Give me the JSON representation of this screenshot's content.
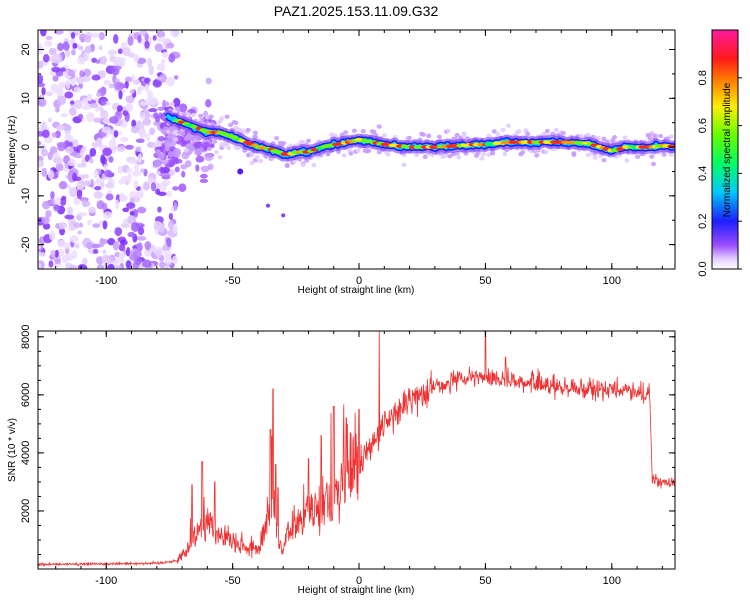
{
  "figure": {
    "title": "PAZ1.2025.153.11.09.G32"
  },
  "colorbar": {
    "label": "Normalized spectral amplitude",
    "ticks": [
      "0.0",
      "0.2",
      "0.4",
      "0.6",
      "0.8"
    ],
    "range": [
      0,
      1
    ],
    "colormap": "rainbow (white/violet at low values, blue, cyan, green, yellow, orange, red, magenta at high values)"
  },
  "chart_data": [
    {
      "type": "heatmap",
      "xlabel": "Height of straight line (km)",
      "ylabel": "Frequency (Hz)",
      "xlim": [
        -127,
        125
      ],
      "ylim": [
        -25,
        24
      ],
      "xticks": [
        -100,
        -50,
        0,
        50,
        100
      ],
      "yticks": [
        -20,
        -10,
        0,
        10,
        20
      ],
      "noise_region": {
        "x_range": [
          -127,
          -76
        ],
        "y_range": [
          -25,
          24
        ],
        "amplitude": "low (0.0-0.2)"
      },
      "ridge": {
        "description": "frequency of the spectral maximum vs height",
        "x": [
          -75,
          -70,
          -65,
          -60,
          -55,
          -50,
          -45,
          -40,
          -35,
          -30,
          -28,
          -25,
          -20,
          -15,
          -10,
          -5,
          0,
          5,
          10,
          20,
          30,
          40,
          45,
          50,
          55,
          60,
          70,
          80,
          90,
          95,
          100,
          105,
          110,
          115,
          120,
          125
        ],
        "y": [
          6,
          5,
          4,
          3,
          3,
          2,
          1,
          0,
          -0.5,
          -1.5,
          -1.5,
          -1,
          -1,
          0,
          0.5,
          1,
          1.5,
          1,
          0.5,
          0,
          0,
          0.3,
          0.5,
          0.5,
          0.8,
          1,
          1,
          1,
          0.8,
          0,
          -0.8,
          0,
          0,
          0,
          0.3,
          0
        ]
      },
      "outliers": {
        "x": [
          -47,
          -36,
          -30
        ],
        "y": [
          -5,
          -12,
          -14
        ]
      }
    },
    {
      "type": "line",
      "xlabel": "Height of straight line (km)",
      "ylabel": "SNR (10 * v/v)",
      "xlim": [
        -127,
        125
      ],
      "ylim": [
        0,
        8200
      ],
      "xticks": [
        -100,
        -50,
        0,
        50,
        100
      ],
      "yticks": [
        2000,
        4000,
        6000,
        8000
      ],
      "color": "#f03030",
      "series": [
        {
          "description": "SNR envelope (trend; trace has heavy high-frequency noise)",
          "x": [
            -127,
            -100,
            -80,
            -72,
            -68,
            -64,
            -60,
            -55,
            -50,
            -45,
            -40,
            -36,
            -34,
            -32,
            -30,
            -28,
            -25,
            -20,
            -15,
            -10,
            -5,
            0,
            5,
            10,
            15,
            20,
            25,
            30,
            40,
            50,
            60,
            70,
            80,
            90,
            100,
            110,
            115,
            116,
            120,
            125
          ],
          "y": [
            150,
            180,
            200,
            280,
            700,
            1300,
            1700,
            1200,
            900,
            700,
            650,
            1800,
            2600,
            900,
            700,
            1200,
            1500,
            2000,
            2300,
            2500,
            3000,
            3500,
            4300,
            5000,
            5400,
            5800,
            6100,
            6300,
            6500,
            6600,
            6500,
            6400,
            6300,
            6200,
            6200,
            6100,
            6000,
            3100,
            3000,
            2900
          ]
        }
      ],
      "spikes": {
        "x": [
          -66,
          -62,
          -57,
          -35,
          -34,
          -33,
          -32,
          -20,
          -15,
          -10,
          -5,
          0,
          50,
          58
        ],
        "y": [
          2900,
          3700,
          3000,
          4800,
          6200,
          3600,
          2800,
          3800,
          4600,
          5600,
          5200,
          5500,
          8200,
          7300
        ]
      }
    }
  ]
}
